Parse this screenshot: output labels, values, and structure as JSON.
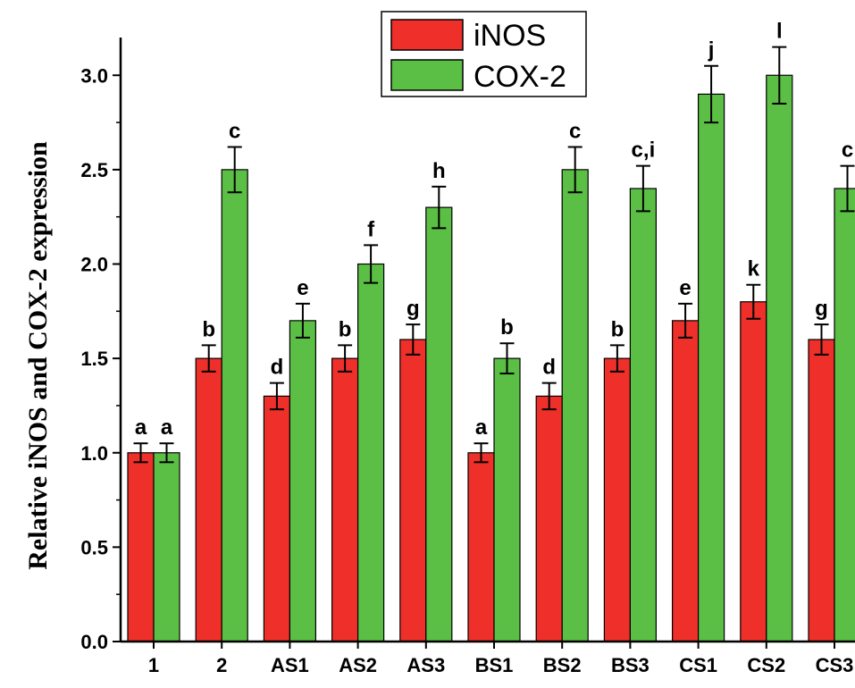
{
  "chart_data": {
    "type": "bar",
    "ylabel": "Relative iNOS and COX-2 expression",
    "xlabel": "",
    "ylim": [
      0,
      3.2
    ],
    "yticks": [
      "0.0",
      "0.5",
      "1.0",
      "1.5",
      "2.0",
      "2.5",
      "3.0"
    ],
    "categories": [
      "1",
      "2",
      "AS1",
      "AS2",
      "AS3",
      "BS1",
      "BS2",
      "BS3",
      "CS1",
      "CS2",
      "CS3"
    ],
    "series": [
      {
        "name": "iNOS",
        "color": "#ee2f2a",
        "values": [
          1.0,
          1.5,
          1.3,
          1.5,
          1.6,
          1.0,
          1.3,
          1.5,
          1.7,
          1.8,
          1.6
        ],
        "errors": [
          0.05,
          0.07,
          0.07,
          0.07,
          0.08,
          0.05,
          0.07,
          0.07,
          0.09,
          0.09,
          0.08
        ],
        "labels": [
          "a",
          "b",
          "d",
          "b",
          "g",
          "a",
          "d",
          "b",
          "e",
          "k",
          "g"
        ]
      },
      {
        "name": "COX-2",
        "color": "#5bbf45",
        "values": [
          1.0,
          2.5,
          1.7,
          2.0,
          2.3,
          1.5,
          2.5,
          2.4,
          2.9,
          3.0,
          2.4
        ],
        "errors": [
          0.05,
          0.12,
          0.09,
          0.1,
          0.11,
          0.08,
          0.12,
          0.12,
          0.15,
          0.15,
          0.12
        ],
        "labels": [
          "a",
          "c",
          "e",
          "f",
          "h",
          "b",
          "c",
          "c,i",
          "j",
          "l",
          "c"
        ]
      }
    ],
    "legend": {
      "position": "top-center",
      "entries": [
        "iNOS",
        "COX-2"
      ]
    }
  }
}
